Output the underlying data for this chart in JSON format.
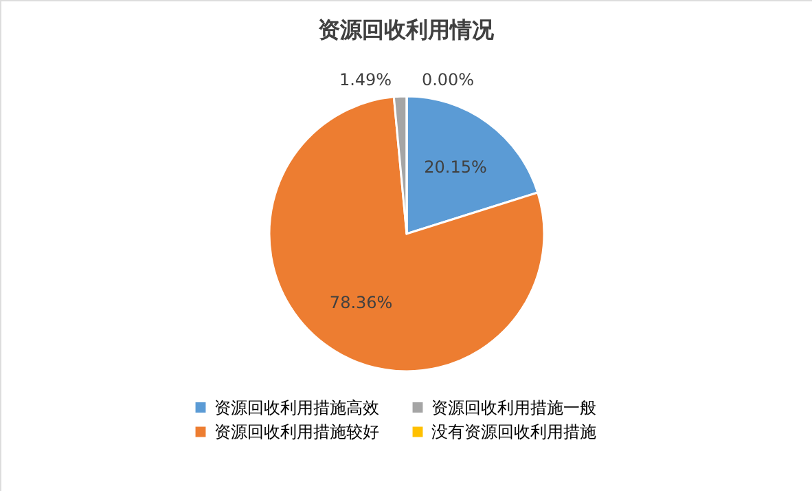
{
  "chart_data": {
    "type": "pie",
    "title": "资源回收利用情况",
    "categories": [
      "资源回收利用措施高效",
      "资源回收利用措施较好",
      "资源回收利用措施一般",
      "没有资源回收利用措施"
    ],
    "values": [
      20.15,
      78.36,
      1.49,
      0.0
    ],
    "colors": [
      "#5b9bd5",
      "#ed7d31",
      "#a5a5a5",
      "#ffc000"
    ],
    "value_labels": [
      "20.15%",
      "78.36%",
      "1.49%",
      "0.00%"
    ],
    "legend": "bottom"
  }
}
